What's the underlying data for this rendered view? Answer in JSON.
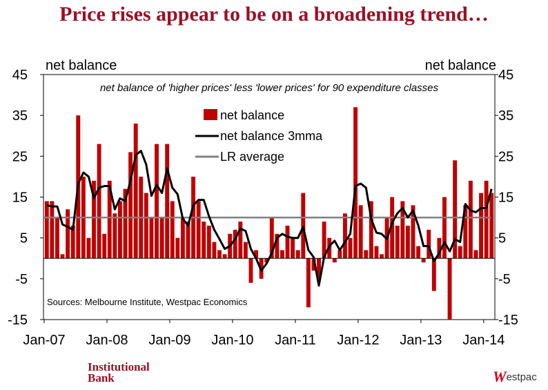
{
  "page": {
    "title": "Price rises appear to be on a broadening trend…"
  },
  "footer": {
    "left_line1": "Institutional",
    "left_line2": "Bank",
    "right_mark": "W",
    "right_rest": "estpac"
  },
  "chart_data": {
    "type": "bar+line",
    "subtitle": "net balance of 'higher prices' less 'lower prices' for 90 expenditure classes",
    "ylabel_left": "net balance",
    "ylabel_right": "net balance",
    "source": "Sources: Melbourne Institute, Westpac Economics",
    "ylim": [
      -15,
      45
    ],
    "yticks": [
      45,
      35,
      25,
      15,
      5,
      -5,
      -15
    ],
    "x_tick_labels": [
      "Jan-07",
      "Jan-08",
      "Jan-09",
      "Jan-10",
      "Jan-11",
      "Jan-12",
      "Jan-13",
      "Jan-14"
    ],
    "x_start": "2007-01",
    "frequency": "monthly",
    "series": [
      {
        "name": "net balance",
        "type": "bar",
        "color": "#c00000",
        "values": [
          14,
          14,
          10,
          1,
          12,
          8,
          35,
          20,
          5,
          19,
          28,
          6,
          19,
          11,
          14,
          17,
          26,
          33,
          20,
          16,
          10,
          28,
          10,
          28,
          14,
          5,
          10,
          9,
          20,
          14,
          9,
          8,
          4,
          2,
          1,
          6,
          7,
          9,
          4,
          -6,
          2,
          -5,
          -1,
          10,
          6,
          2,
          8,
          5,
          2,
          16,
          -12,
          -3,
          -5,
          9,
          5,
          -1,
          2,
          11,
          5,
          37,
          13,
          2,
          14,
          3,
          1,
          10,
          15,
          8,
          14,
          8,
          13,
          3,
          -1,
          7,
          -8,
          5,
          15,
          -15,
          24,
          3,
          13,
          19,
          2,
          16,
          19,
          16
        ],
        "bar_order": "chronological"
      },
      {
        "name": "net balance 3mma",
        "type": "line",
        "color": "#000000",
        "values": [
          13,
          12.7,
          12.7,
          8.3,
          7.7,
          7,
          18.3,
          21,
          20,
          14.7,
          17.3,
          17.7,
          17.7,
          12,
          14.7,
          14,
          19,
          25.3,
          26.3,
          23,
          15.3,
          18,
          16,
          22,
          17.3,
          15.7,
          9.7,
          8,
          13,
          14.3,
          14.3,
          10.3,
          7,
          4.7,
          2.3,
          3,
          4.7,
          7.3,
          6.7,
          2.3,
          0,
          -3,
          -1.3,
          1.3,
          5,
          6,
          5.3,
          5,
          5,
          7.7,
          2,
          0.3,
          -6.7,
          0.3,
          3,
          4.3,
          2,
          4,
          6,
          17.7,
          18.3,
          17.3,
          9.7,
          6.3,
          6,
          4.7,
          8.7,
          11,
          12.3,
          10,
          11.7,
          8,
          3,
          3,
          -0.7,
          1.3,
          4,
          1.7,
          4.7,
          4,
          13.3,
          11.7,
          11.3,
          12.3,
          12.3,
          17
        ]
      },
      {
        "name": "LR average",
        "type": "line",
        "color": "#808080",
        "values": [
          10
        ]
      }
    ],
    "legend": {
      "placement": "top-center",
      "items": [
        "net balance",
        "net balance 3mma",
        "LR average"
      ]
    },
    "grid": false
  }
}
